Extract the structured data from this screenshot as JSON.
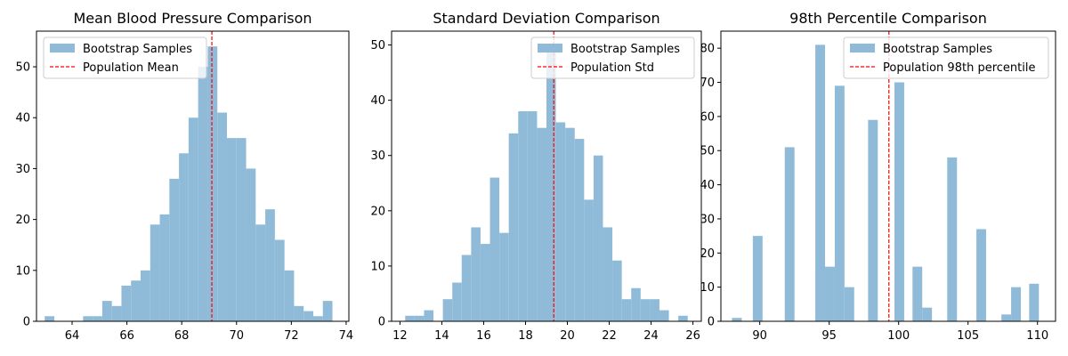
{
  "chart_data": [
    {
      "type": "bar",
      "title": "Mean Blood Pressure Comparison",
      "xlabel": "",
      "ylabel": "",
      "xlim": [
        62.7,
        74.1
      ],
      "ylim": [
        0,
        57
      ],
      "xticks": [
        64,
        66,
        68,
        70,
        72,
        74
      ],
      "yticks": [
        0,
        10,
        20,
        30,
        40,
        50
      ],
      "bins": [
        {
          "x0": 63.0,
          "x1": 63.35,
          "count": 1
        },
        {
          "x0": 64.4,
          "x1": 64.75,
          "count": 1
        },
        {
          "x0": 64.75,
          "x1": 65.1,
          "count": 1
        },
        {
          "x0": 65.1,
          "x1": 65.45,
          "count": 4
        },
        {
          "x0": 65.45,
          "x1": 65.8,
          "count": 3
        },
        {
          "x0": 65.8,
          "x1": 66.15,
          "count": 7
        },
        {
          "x0": 66.15,
          "x1": 66.5,
          "count": 8
        },
        {
          "x0": 66.5,
          "x1": 66.85,
          "count": 10
        },
        {
          "x0": 66.85,
          "x1": 67.2,
          "count": 19
        },
        {
          "x0": 67.2,
          "x1": 67.55,
          "count": 21
        },
        {
          "x0": 67.55,
          "x1": 67.9,
          "count": 28
        },
        {
          "x0": 67.9,
          "x1": 68.25,
          "count": 33
        },
        {
          "x0": 68.25,
          "x1": 68.6,
          "count": 40
        },
        {
          "x0": 68.6,
          "x1": 68.95,
          "count": 50
        },
        {
          "x0": 68.95,
          "x1": 69.3,
          "count": 54
        },
        {
          "x0": 69.3,
          "x1": 69.65,
          "count": 41
        },
        {
          "x0": 69.65,
          "x1": 70.0,
          "count": 36
        },
        {
          "x0": 70.0,
          "x1": 70.35,
          "count": 36
        },
        {
          "x0": 70.35,
          "x1": 70.7,
          "count": 30
        },
        {
          "x0": 70.7,
          "x1": 71.05,
          "count": 19
        },
        {
          "x0": 71.05,
          "x1": 71.4,
          "count": 22
        },
        {
          "x0": 71.4,
          "x1": 71.75,
          "count": 16
        },
        {
          "x0": 71.75,
          "x1": 72.1,
          "count": 10
        },
        {
          "x0": 72.1,
          "x1": 72.45,
          "count": 3
        },
        {
          "x0": 72.45,
          "x1": 72.8,
          "count": 2
        },
        {
          "x0": 72.8,
          "x1": 73.15,
          "count": 1
        },
        {
          "x0": 73.15,
          "x1": 73.5,
          "count": 4
        }
      ],
      "reference_line": {
        "value": 69.1
      },
      "legend": {
        "position": "top-left",
        "entries": [
          "Bootstrap Samples",
          "Population Mean"
        ]
      }
    },
    {
      "type": "bar",
      "title": "Standard Deviation Comparison",
      "xlabel": "",
      "ylabel": "",
      "xlim": [
        11.6,
        26.4
      ],
      "ylim": [
        0,
        52.5
      ],
      "xticks": [
        12,
        14,
        16,
        18,
        20,
        22,
        24,
        26
      ],
      "yticks": [
        0,
        10,
        20,
        30,
        40,
        50
      ],
      "bins": [
        {
          "x0": 12.25,
          "x1": 12.7,
          "count": 1
        },
        {
          "x0": 12.7,
          "x1": 13.15,
          "count": 1
        },
        {
          "x0": 13.15,
          "x1": 13.6,
          "count": 2
        },
        {
          "x0": 14.05,
          "x1": 14.5,
          "count": 4
        },
        {
          "x0": 14.5,
          "x1": 14.95,
          "count": 7
        },
        {
          "x0": 14.95,
          "x1": 15.4,
          "count": 12
        },
        {
          "x0": 15.4,
          "x1": 15.85,
          "count": 17
        },
        {
          "x0": 15.85,
          "x1": 16.3,
          "count": 14
        },
        {
          "x0": 16.3,
          "x1": 16.75,
          "count": 26
        },
        {
          "x0": 16.75,
          "x1": 17.2,
          "count": 16
        },
        {
          "x0": 17.2,
          "x1": 17.65,
          "count": 34
        },
        {
          "x0": 17.65,
          "x1": 18.1,
          "count": 38
        },
        {
          "x0": 18.1,
          "x1": 18.55,
          "count": 38
        },
        {
          "x0": 18.55,
          "x1": 19.0,
          "count": 35
        },
        {
          "x0": 19.0,
          "x1": 19.45,
          "count": 50
        },
        {
          "x0": 19.45,
          "x1": 19.9,
          "count": 36
        },
        {
          "x0": 19.9,
          "x1": 20.35,
          "count": 35
        },
        {
          "x0": 20.35,
          "x1": 20.8,
          "count": 33
        },
        {
          "x0": 20.8,
          "x1": 21.25,
          "count": 22
        },
        {
          "x0": 21.25,
          "x1": 21.7,
          "count": 30
        },
        {
          "x0": 21.7,
          "x1": 22.15,
          "count": 17
        },
        {
          "x0": 22.15,
          "x1": 22.6,
          "count": 11
        },
        {
          "x0": 22.6,
          "x1": 23.05,
          "count": 4
        },
        {
          "x0": 23.05,
          "x1": 23.5,
          "count": 6
        },
        {
          "x0": 23.5,
          "x1": 23.95,
          "count": 4
        },
        {
          "x0": 23.95,
          "x1": 24.4,
          "count": 4
        },
        {
          "x0": 24.4,
          "x1": 24.85,
          "count": 2
        },
        {
          "x0": 25.3,
          "x1": 25.75,
          "count": 1
        }
      ],
      "reference_line": {
        "value": 19.35
      },
      "legend": {
        "position": "top-right",
        "entries": [
          "Bootstrap Samples",
          "Population Std"
        ]
      }
    },
    {
      "type": "bar",
      "title": "98th Percentile Comparison",
      "xlabel": "",
      "ylabel": "",
      "xlim": [
        87.2,
        111.3
      ],
      "ylim": [
        0,
        85
      ],
      "xticks": [
        90,
        95,
        100,
        105,
        110
      ],
      "yticks": [
        0,
        10,
        20,
        30,
        40,
        50,
        60,
        70,
        80
      ],
      "bins": [
        {
          "x0": 88.0,
          "x1": 88.7,
          "count": 1
        },
        {
          "x0": 89.5,
          "x1": 90.2,
          "count": 25
        },
        {
          "x0": 91.8,
          "x1": 92.5,
          "count": 51
        },
        {
          "x0": 94.0,
          "x1": 94.7,
          "count": 81
        },
        {
          "x0": 94.7,
          "x1": 95.4,
          "count": 16
        },
        {
          "x0": 95.4,
          "x1": 96.1,
          "count": 69
        },
        {
          "x0": 96.1,
          "x1": 96.8,
          "count": 10
        },
        {
          "x0": 97.8,
          "x1": 98.5,
          "count": 59
        },
        {
          "x0": 99.7,
          "x1": 100.4,
          "count": 70
        },
        {
          "x0": 101.0,
          "x1": 101.7,
          "count": 16
        },
        {
          "x0": 101.7,
          "x1": 102.4,
          "count": 4
        },
        {
          "x0": 103.5,
          "x1": 104.2,
          "count": 48
        },
        {
          "x0": 105.6,
          "x1": 106.3,
          "count": 27
        },
        {
          "x0": 107.4,
          "x1": 108.1,
          "count": 2
        },
        {
          "x0": 108.1,
          "x1": 108.8,
          "count": 10
        },
        {
          "x0": 109.4,
          "x1": 110.1,
          "count": 11
        }
      ],
      "reference_line": {
        "value": 99.3
      },
      "legend": {
        "position": "top-right",
        "entries": [
          "Bootstrap Samples",
          "Population 98th percentile"
        ]
      }
    }
  ],
  "colors": {
    "bar": "#8fbbd9",
    "reference_line": "#ff0000",
    "axis": "#000000",
    "legend_border": "#cccccc"
  }
}
